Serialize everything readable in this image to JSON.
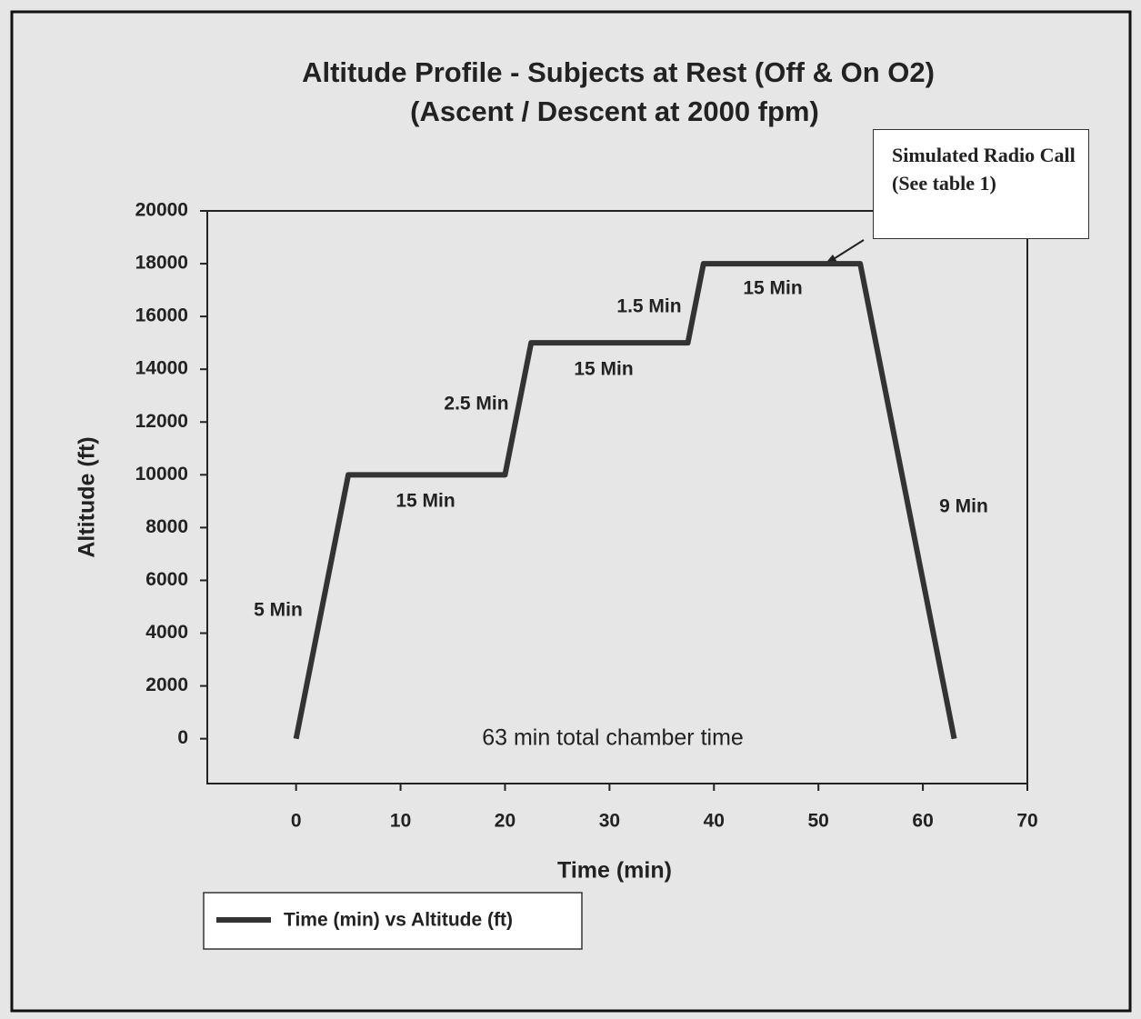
{
  "chart_data": {
    "type": "line",
    "title": "Altitude Profile - Subjects at Rest (Off & On O2)",
    "subtitle": "(Ascent / Descent at 2000 fpm)",
    "x_label": "Time (min)",
    "y_label": "Altitude (ft)",
    "x": [
      0,
      5,
      20,
      22.5,
      37.5,
      39,
      54,
      63
    ],
    "series": [
      {
        "name": "Time (min) vs Altitude (ft)",
        "color": "#333333",
        "values": [
          0,
          10000,
          10000,
          15000,
          15000,
          18000,
          18000,
          0
        ]
      }
    ],
    "xlim": [
      -8.5,
      70
    ],
    "xticks": [
      0,
      10,
      20,
      30,
      40,
      50,
      60,
      70
    ],
    "ylim": [
      -1700,
      20000
    ],
    "yticks": [
      0,
      2000,
      4000,
      6000,
      8000,
      10000,
      12000,
      14000,
      16000,
      18000,
      20000
    ],
    "annotations": [
      "5 Min",
      "15 Min",
      "2.5 Min",
      "15 Min",
      "1.5 Min",
      "15 Min",
      "9 Min",
      "63 min total chamber time"
    ],
    "callout": "Simulated Radio Call (See table 1)",
    "legend": "bottom-left"
  }
}
